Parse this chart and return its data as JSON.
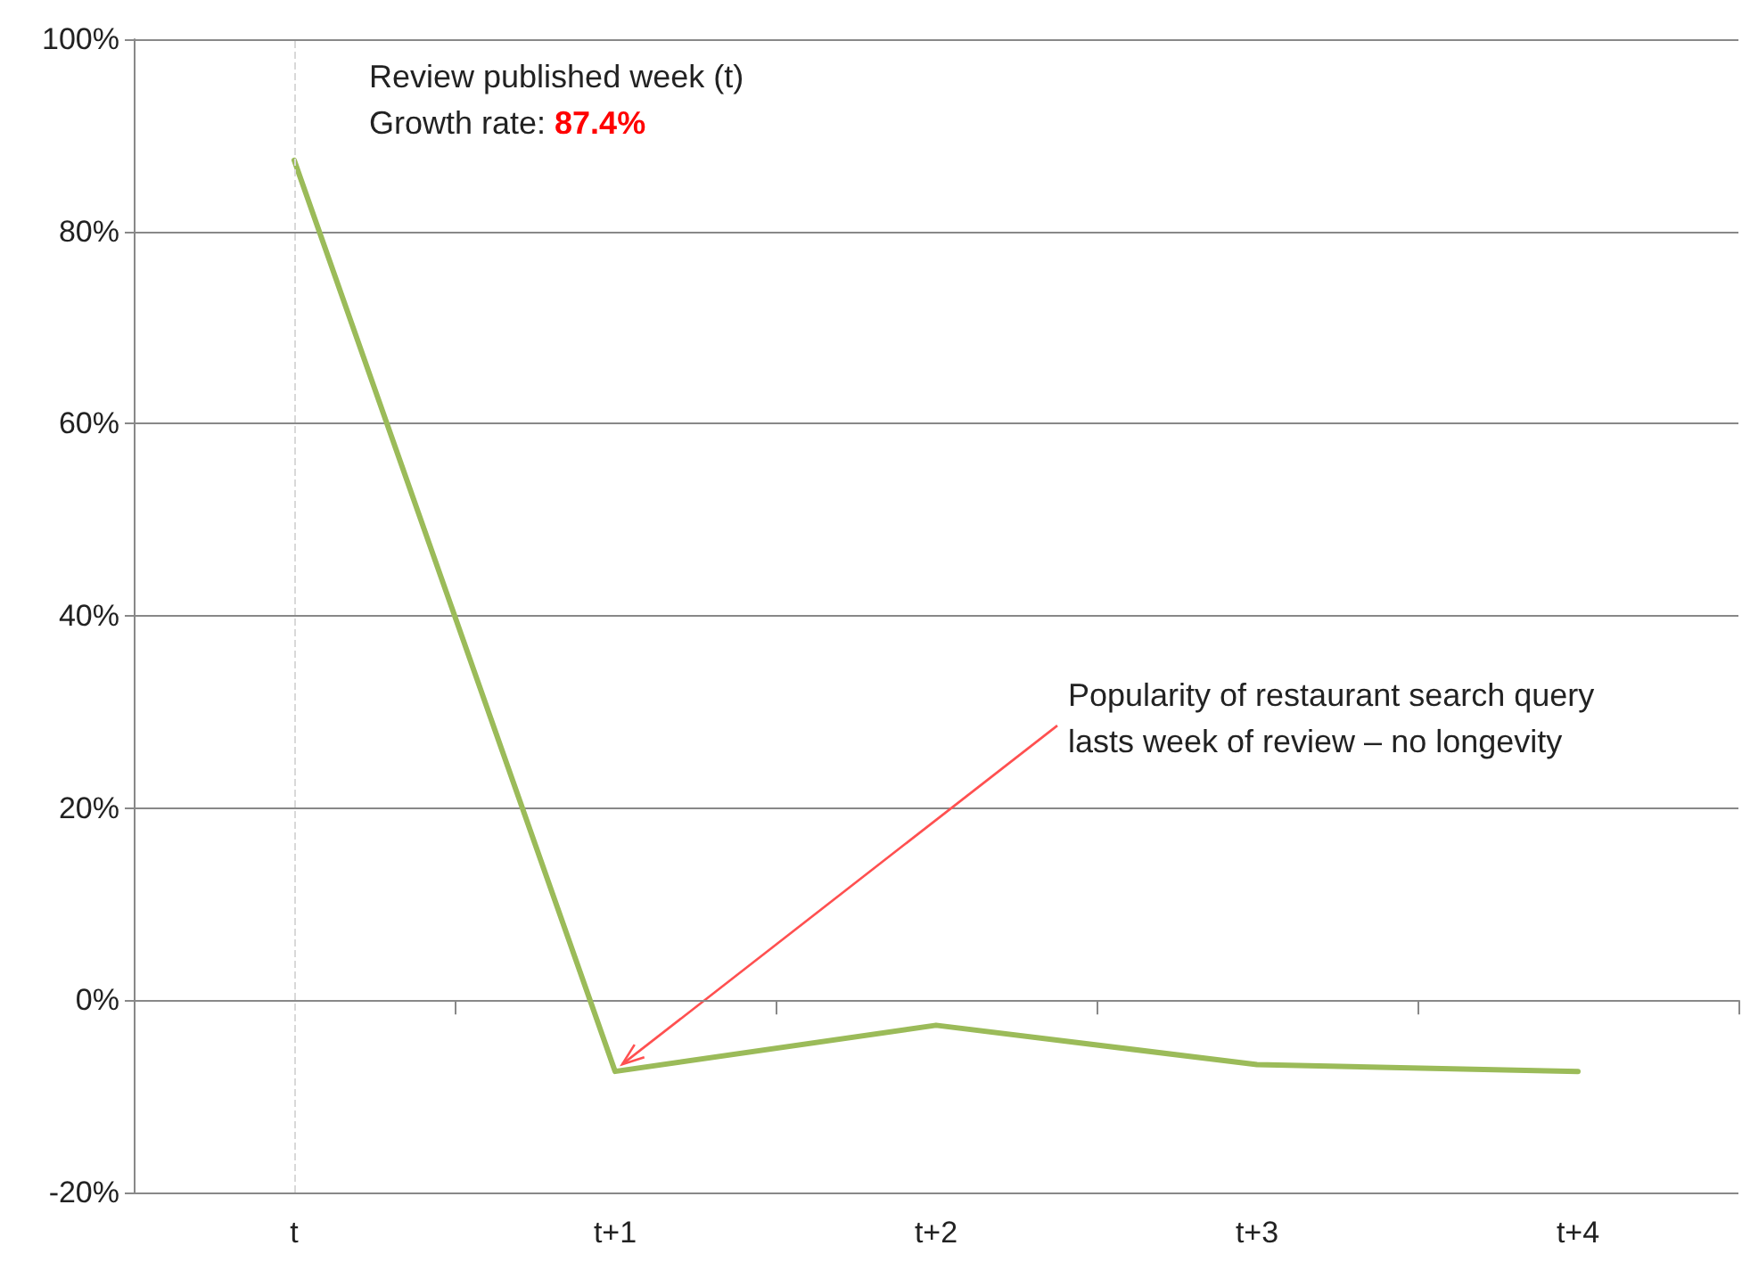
{
  "chart_data": {
    "type": "line",
    "categories": [
      "t",
      "t+1",
      "t+2",
      "t+3",
      "t+4"
    ],
    "series": [
      {
        "color": "#9bbb59",
        "values": [
          87.4,
          -7.4,
          -2.6,
          -6.7,
          -7.4
        ]
      }
    ],
    "ylim": [
      -20,
      100
    ],
    "yticks": [
      {
        "value": -20,
        "label": "-20%"
      },
      {
        "value": 0,
        "label": "0%"
      },
      {
        "value": 20,
        "label": "20%"
      },
      {
        "value": 40,
        "label": "40%"
      },
      {
        "value": 60,
        "label": "60%"
      },
      {
        "value": 80,
        "label": "80%"
      },
      {
        "value": 100,
        "label": "100%"
      }
    ],
    "grid": "y",
    "marker": "none",
    "line_style": "solid",
    "ref_lines": [
      {
        "axis": "x",
        "value": "t",
        "color": "#d9d9d9",
        "line_style": "dashed"
      }
    ],
    "annotations": [
      {
        "text": "Review published week (t)\nGrowth rate: 87.4%",
        "x": "t",
        "y": 87.4
      },
      {
        "text": "Popularity of restaurant search query\nlasts week of review – no longevity",
        "x": "t+1",
        "y": -7.4
      }
    ]
  }
}
